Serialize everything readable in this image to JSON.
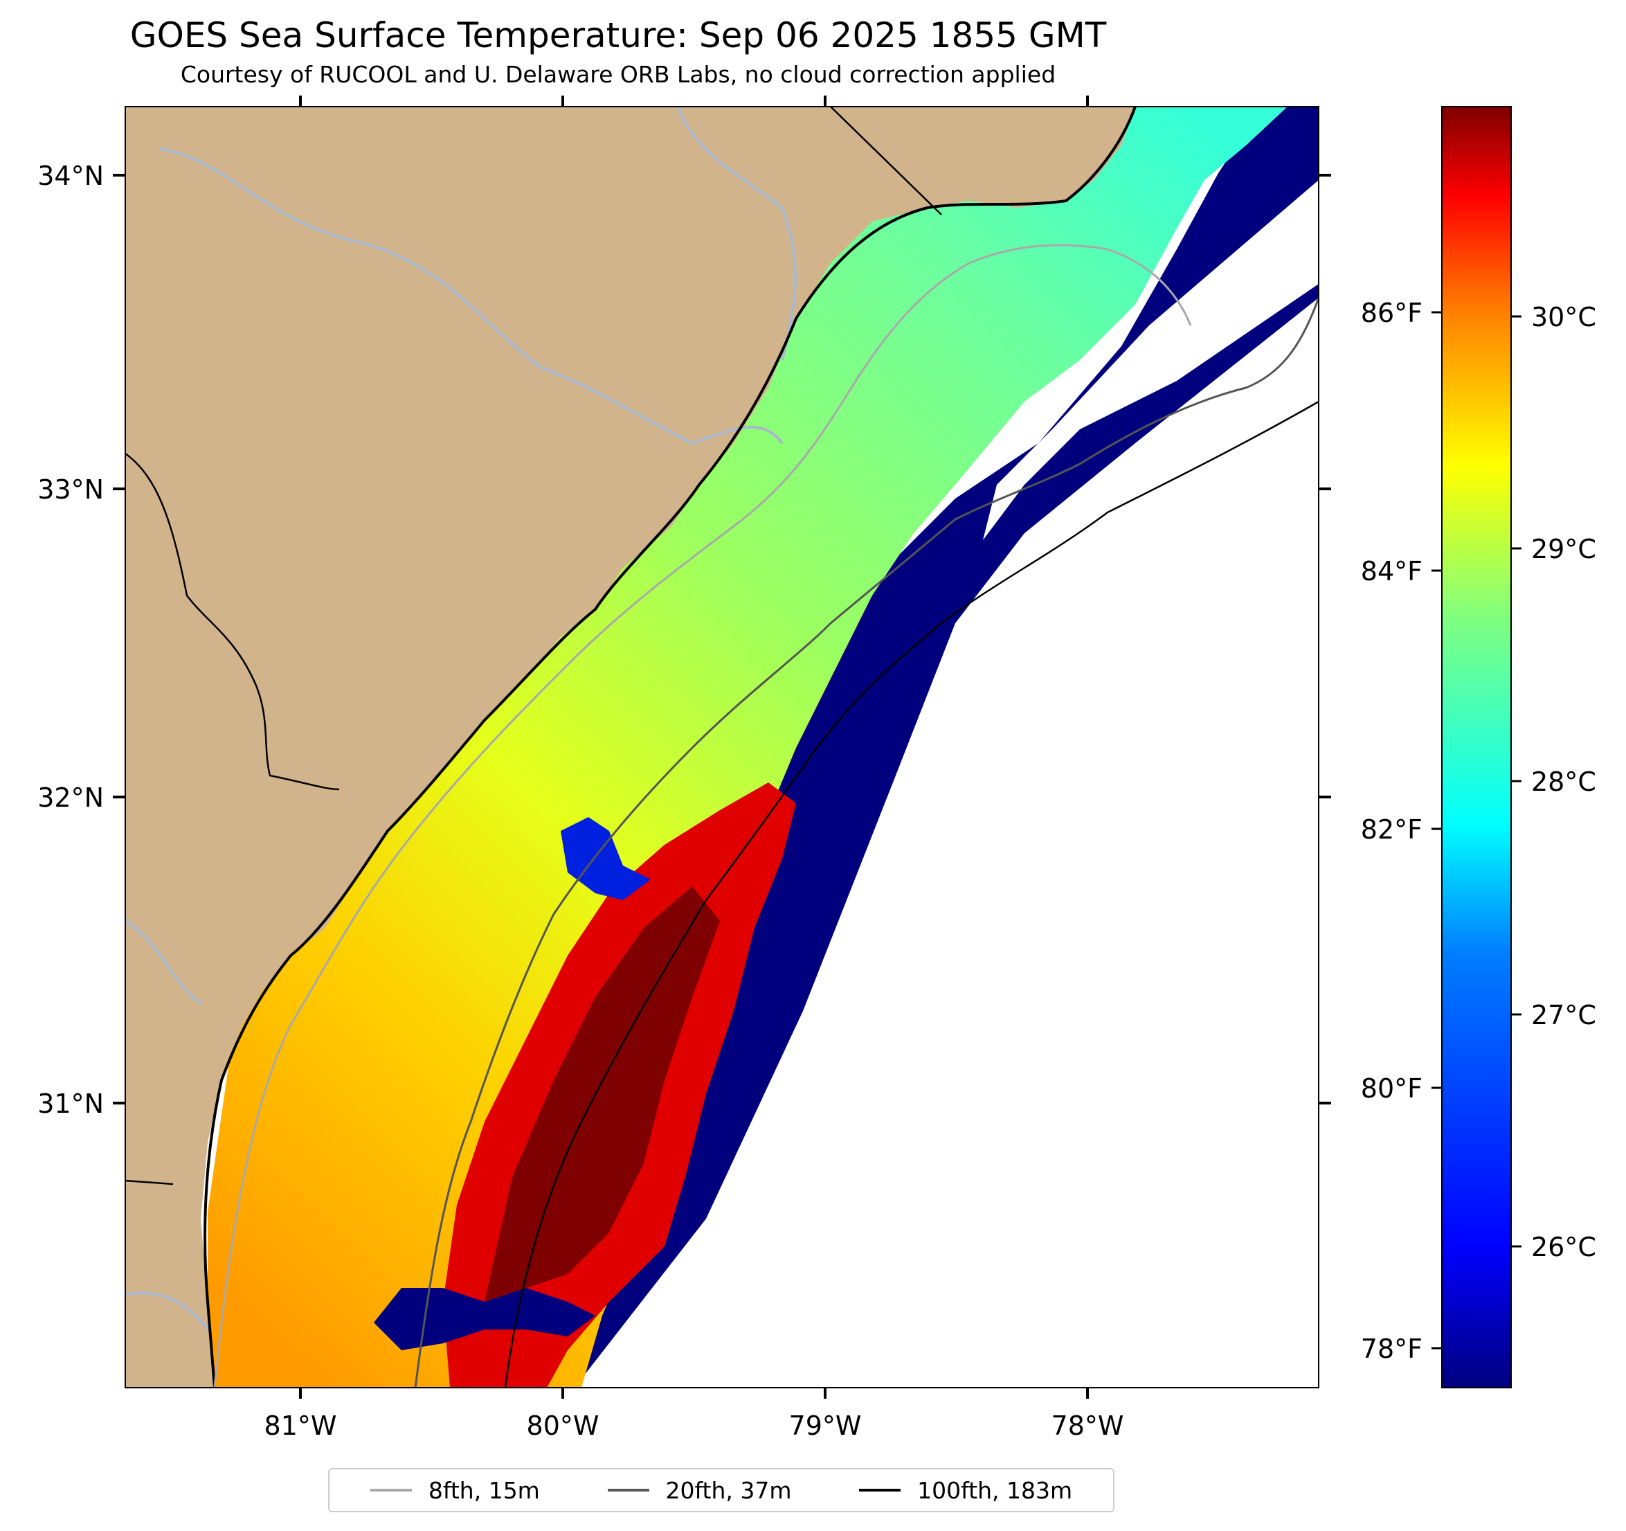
{
  "title": "GOES Sea Surface Temperature: Sep 06 2025 1855 GMT",
  "subtitle": "Courtesy of RUCOOL and U. Delaware ORB Labs, no cloud correction applied",
  "map": {
    "longitude_labels": [
      "81°W",
      "80°W",
      "79°W",
      "78°W"
    ],
    "latitude_labels": [
      "34°N",
      "33°N",
      "32°N",
      "31°N"
    ],
    "land_color": "#d2b48c",
    "river_color": "#a9b8cc",
    "boundary_color": "#000000"
  },
  "colorbar": {
    "celsius_labels": [
      "30°C",
      "29°C",
      "28°C",
      "27°C",
      "26°C"
    ],
    "fahrenheit_labels": [
      "86°F",
      "84°F",
      "82°F",
      "80°F",
      "78°F"
    ],
    "colormap": "jet",
    "colors": [
      "#00007f",
      "#0000ff",
      "#007fff",
      "#00ffff",
      "#7fff7f",
      "#ffff00",
      "#ff7f00",
      "#ff0000",
      "#7f0000"
    ]
  },
  "legend": [
    {
      "label": "8fth, 15m",
      "color": "#a9a9a9"
    },
    {
      "label": "20fth, 37m",
      "color": "#555555"
    },
    {
      "label": "100fth, 183m",
      "color": "#000000"
    }
  ]
}
